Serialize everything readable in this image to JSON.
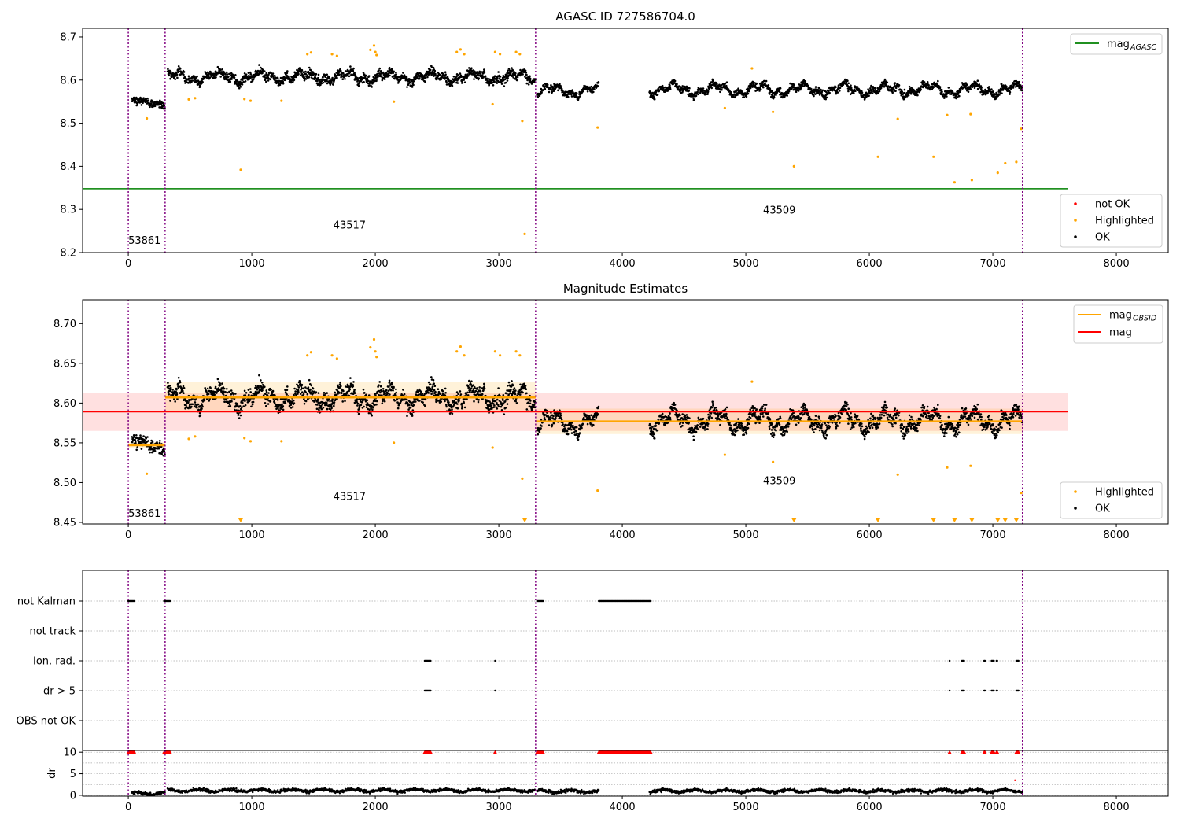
{
  "colors": {
    "ok": "#000000",
    "highlighted": "#ffa500",
    "not_ok": "#ff0000",
    "agasc_line": "#008000",
    "obsid_line": "#ffa500",
    "mag_line": "#ff0000",
    "obsid_boundary": "#800080"
  },
  "chart_data": [
    {
      "type": "scatter",
      "title": "AGASC ID 727586704.0",
      "xlim": [
        -370,
        8420
      ],
      "ylim": [
        8.2,
        8.72
      ],
      "xticks": [
        0,
        1000,
        2000,
        3000,
        4000,
        5000,
        6000,
        7000,
        8000
      ],
      "yticks": [
        8.2,
        8.3,
        8.4,
        8.5,
        8.6,
        8.7
      ],
      "ytick_labels": [
        "8.2",
        "8.3",
        "8.4",
        "8.5",
        "8.6",
        "8.7"
      ],
      "lines": [
        {
          "name": "mag_AGASC",
          "y": 8.348,
          "x": [
            -370,
            7610
          ],
          "color": "#008000"
        }
      ],
      "legend_lines": {
        "label": "mag",
        "sub": "AGASC",
        "position": "upper right"
      },
      "legend_markers": {
        "position": "lower right",
        "items": [
          {
            "label": "not OK",
            "color": "#ff0000"
          },
          {
            "label": "Highlighted",
            "color": "#ffa500"
          },
          {
            "label": "OK",
            "color": "#000000"
          }
        ]
      },
      "obsid_boundaries": [
        0,
        298,
        3298,
        7240
      ],
      "annotations": [
        {
          "text": "53861",
          "x": 0,
          "y": 8.22
        },
        {
          "text": "43517",
          "x": 1660,
          "y": 8.256
        },
        {
          "text": "43509",
          "x": 5140,
          "y": 8.29
        }
      ],
      "obsids": [
        {
          "x_range": [
            30,
            298
          ],
          "mean": 8.548,
          "wave": 0.008,
          "jitter": 0.008
        },
        {
          "x_range": [
            318,
            3298
          ],
          "mean": 8.607,
          "wave": 0.015,
          "jitter": 0.011
        },
        {
          "x_range": [
            3310,
            3810
          ],
          "mean": 8.575,
          "wave": 0.015,
          "jitter": 0.008
        },
        {
          "x_range": [
            4220,
            7240
          ],
          "mean": 8.578,
          "wave": 0.016,
          "jitter": 0.009
        }
      ],
      "highlighted_points": [
        {
          "x": 150,
          "y": 8.511
        },
        {
          "x": 490,
          "y": 8.555
        },
        {
          "x": 540,
          "y": 8.558
        },
        {
          "x": 910,
          "y": 8.392
        },
        {
          "x": 940,
          "y": 8.556
        },
        {
          "x": 990,
          "y": 8.552
        },
        {
          "x": 1240,
          "y": 8.552
        },
        {
          "x": 1450,
          "y": 8.66
        },
        {
          "x": 1480,
          "y": 8.664
        },
        {
          "x": 1650,
          "y": 8.66
        },
        {
          "x": 1690,
          "y": 8.656
        },
        {
          "x": 1960,
          "y": 8.67
        },
        {
          "x": 1990,
          "y": 8.68
        },
        {
          "x": 2000,
          "y": 8.665
        },
        {
          "x": 2010,
          "y": 8.658
        },
        {
          "x": 2150,
          "y": 8.55
        },
        {
          "x": 2660,
          "y": 8.665
        },
        {
          "x": 2690,
          "y": 8.671
        },
        {
          "x": 2720,
          "y": 8.66
        },
        {
          "x": 2950,
          "y": 8.544
        },
        {
          "x": 2970,
          "y": 8.665
        },
        {
          "x": 3010,
          "y": 8.66
        },
        {
          "x": 3140,
          "y": 8.665
        },
        {
          "x": 3170,
          "y": 8.66
        },
        {
          "x": 3190,
          "y": 8.505
        },
        {
          "x": 3210,
          "y": 8.243
        },
        {
          "x": 3800,
          "y": 8.49
        },
        {
          "x": 4830,
          "y": 8.535
        },
        {
          "x": 5050,
          "y": 8.627
        },
        {
          "x": 5220,
          "y": 8.526
        },
        {
          "x": 5390,
          "y": 8.4
        },
        {
          "x": 6070,
          "y": 8.422
        },
        {
          "x": 6230,
          "y": 8.51
        },
        {
          "x": 6520,
          "y": 8.422
        },
        {
          "x": 6630,
          "y": 8.519
        },
        {
          "x": 6690,
          "y": 8.363
        },
        {
          "x": 6830,
          "y": 8.368
        },
        {
          "x": 6820,
          "y": 8.521
        },
        {
          "x": 7040,
          "y": 8.385
        },
        {
          "x": 7100,
          "y": 8.407
        },
        {
          "x": 7190,
          "y": 8.41
        },
        {
          "x": 7230,
          "y": 8.487
        }
      ]
    },
    {
      "type": "scatter",
      "title": "Magnitude Estimates",
      "xlim": [
        -370,
        8420
      ],
      "ylim": [
        8.448,
        8.73
      ],
      "xticks": [
        0,
        1000,
        2000,
        3000,
        4000,
        5000,
        6000,
        7000,
        8000
      ],
      "yticks": [
        8.45,
        8.5,
        8.55,
        8.6,
        8.65,
        8.7
      ],
      "ytick_labels": [
        "8.45",
        "8.50",
        "8.55",
        "8.60",
        "8.65",
        "8.70"
      ],
      "mag": {
        "value": 8.589,
        "band": [
          8.565,
          8.613
        ],
        "x": [
          -370,
          7610
        ]
      },
      "obsid_means": [
        {
          "x": [
            0,
            298
          ],
          "value": 8.547,
          "band": [
            8.543,
            8.551
          ]
        },
        {
          "x": [
            298,
            3298
          ],
          "value": 8.607,
          "band": [
            8.59,
            8.627
          ]
        },
        {
          "x": [
            3298,
            7240
          ],
          "value": 8.577,
          "band": [
            8.561,
            8.593
          ]
        }
      ],
      "legend_lines": {
        "position": "upper right",
        "items": [
          {
            "label": "mag",
            "sub": "OBSID",
            "color": "#ffa500"
          },
          {
            "label": "mag",
            "sub": "",
            "color": "#ff0000"
          }
        ]
      },
      "legend_markers": {
        "position": "lower right",
        "items": [
          {
            "label": "Highlighted",
            "color": "#ffa500"
          },
          {
            "label": "OK",
            "color": "#000000"
          }
        ]
      },
      "annotations": [
        {
          "text": "53861",
          "x": 0,
          "y": 8.457
        },
        {
          "text": "43517",
          "x": 1660,
          "y": 8.478
        },
        {
          "text": "43509",
          "x": 5140,
          "y": 8.498
        }
      ],
      "clipped_markers_x": [
        910,
        3210,
        5390,
        6070,
        6520,
        6690,
        6830,
        7040,
        7100,
        7190
      ]
    },
    {
      "type": "scatter",
      "xlim": [
        -370,
        8420
      ],
      "categories": [
        "not Kalman",
        "not track",
        "Ion. rad.",
        "dr > 5",
        "OBS not OK"
      ],
      "flags": {
        "not Kalman": [
          [
            0,
            50
          ],
          [
            290,
            340
          ],
          [
            3310,
            3360
          ],
          [
            3810,
            4230
          ]
        ],
        "not track": [],
        "Ion. rad.": [
          [
            2400,
            2450
          ],
          [
            2970,
            2970
          ],
          [
            6650,
            6650
          ],
          [
            6750,
            6770
          ],
          [
            6930,
            6940
          ],
          [
            6990,
            7010
          ],
          [
            7030,
            7040
          ],
          [
            7190,
            7210
          ]
        ],
        "dr > 5": [
          [
            2400,
            2450
          ],
          [
            2970,
            2970
          ],
          [
            6650,
            6650
          ],
          [
            6750,
            6770
          ],
          [
            6930,
            6940
          ],
          [
            6990,
            7010
          ],
          [
            7030,
            7040
          ],
          [
            7190,
            7210
          ]
        ],
        "OBS not OK": []
      },
      "dr": {
        "ylabel": "dr",
        "ylim": [
          -0.2,
          10.4
        ],
        "yticks": [
          0,
          5,
          10
        ],
        "capped_value": 10,
        "capped_ranges": [
          [
            0,
            50
          ],
          [
            290,
            340
          ],
          [
            2400,
            2450
          ],
          [
            2970,
            2970
          ],
          [
            3310,
            3360
          ],
          [
            3810,
            4230
          ],
          [
            6650,
            6650
          ],
          [
            6750,
            6770
          ],
          [
            6930,
            6940
          ],
          [
            6990,
            7010
          ],
          [
            7030,
            7040
          ],
          [
            7190,
            7210
          ]
        ],
        "segments": [
          [
            30,
            298,
            0.4
          ],
          [
            318,
            3298,
            1.1
          ],
          [
            3310,
            3810,
            0.9
          ],
          [
            4220,
            7240,
            1.0
          ]
        ],
        "extra_points": [
          {
            "x": 7180,
            "y": 3.5
          }
        ]
      },
      "xticks": [
        0,
        1000,
        2000,
        3000,
        4000,
        5000,
        6000,
        7000,
        8000
      ]
    }
  ]
}
